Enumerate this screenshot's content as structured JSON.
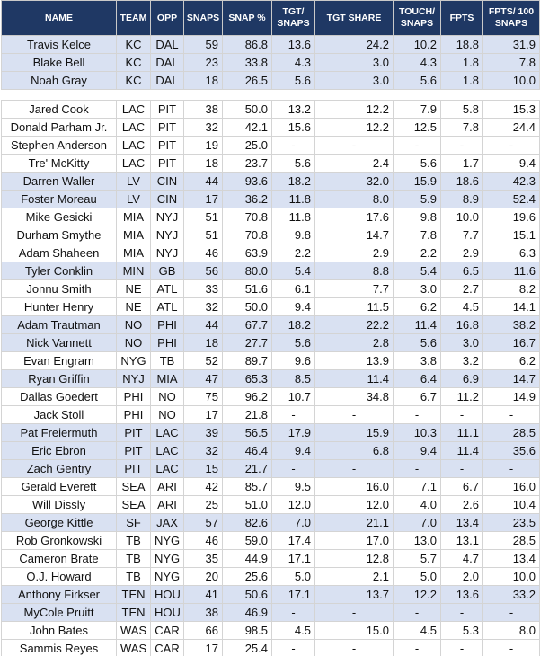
{
  "table": {
    "header": [
      "NAME",
      "TEAM",
      "OPP",
      "SNAPS",
      "SNAP %",
      "TGT/\nSNAPS",
      "TGT SHARE",
      "TOUCH/\nSNAPS",
      "FPTS",
      "FPTS/ 100\nSNAPS"
    ],
    "rows": [
      [
        "Travis Kelce",
        "KC",
        "DAL",
        "59",
        "86.8",
        "13.6",
        "24.2",
        "10.2",
        "18.8",
        "31.9"
      ],
      [
        "Blake Bell",
        "KC",
        "DAL",
        "23",
        "33.8",
        "4.3",
        "3.0",
        "4.3",
        "1.8",
        "7.8"
      ],
      [
        "Noah Gray",
        "KC",
        "DAL",
        "18",
        "26.5",
        "5.6",
        "3.0",
        "5.6",
        "1.8",
        "10.0"
      ],
      [
        "Jared Cook",
        "LAC",
        "PIT",
        "38",
        "50.0",
        "13.2",
        "12.2",
        "7.9",
        "5.8",
        "15.3"
      ],
      [
        "Donald Parham Jr.",
        "LAC",
        "PIT",
        "32",
        "42.1",
        "15.6",
        "12.2",
        "12.5",
        "7.8",
        "24.4"
      ],
      [
        "Stephen Anderson",
        "LAC",
        "PIT",
        "19",
        "25.0",
        "-",
        "-",
        "-",
        "-",
        "-"
      ],
      [
        "Tre' McKitty",
        "LAC",
        "PIT",
        "18",
        "23.7",
        "5.6",
        "2.4",
        "5.6",
        "1.7",
        "9.4"
      ],
      [
        "Darren Waller",
        "LV",
        "CIN",
        "44",
        "93.6",
        "18.2",
        "32.0",
        "15.9",
        "18.6",
        "42.3"
      ],
      [
        "Foster Moreau",
        "LV",
        "CIN",
        "17",
        "36.2",
        "11.8",
        "8.0",
        "5.9",
        "8.9",
        "52.4"
      ],
      [
        "Mike Gesicki",
        "MIA",
        "NYJ",
        "51",
        "70.8",
        "11.8",
        "17.6",
        "9.8",
        "10.0",
        "19.6"
      ],
      [
        "Durham Smythe",
        "MIA",
        "NYJ",
        "51",
        "70.8",
        "9.8",
        "14.7",
        "7.8",
        "7.7",
        "15.1"
      ],
      [
        "Adam Shaheen",
        "MIA",
        "NYJ",
        "46",
        "63.9",
        "2.2",
        "2.9",
        "2.2",
        "2.9",
        "6.3"
      ],
      [
        "Tyler Conklin",
        "MIN",
        "GB",
        "56",
        "80.0",
        "5.4",
        "8.8",
        "5.4",
        "6.5",
        "11.6"
      ],
      [
        "Jonnu Smith",
        "NE",
        "ATL",
        "33",
        "51.6",
        "6.1",
        "7.7",
        "3.0",
        "2.7",
        "8.2"
      ],
      [
        "Hunter Henry",
        "NE",
        "ATL",
        "32",
        "50.0",
        "9.4",
        "11.5",
        "6.2",
        "4.5",
        "14.1"
      ],
      [
        "Adam Trautman",
        "NO",
        "PHI",
        "44",
        "67.7",
        "18.2",
        "22.2",
        "11.4",
        "16.8",
        "38.2"
      ],
      [
        "Nick Vannett",
        "NO",
        "PHI",
        "18",
        "27.7",
        "5.6",
        "2.8",
        "5.6",
        "3.0",
        "16.7"
      ],
      [
        "Evan Engram",
        "NYG",
        "TB",
        "52",
        "89.7",
        "9.6",
        "13.9",
        "3.8",
        "3.2",
        "6.2"
      ],
      [
        "Ryan Griffin",
        "NYJ",
        "MIA",
        "47",
        "65.3",
        "8.5",
        "11.4",
        "6.4",
        "6.9",
        "14.7"
      ],
      [
        "Dallas Goedert",
        "PHI",
        "NO",
        "75",
        "96.2",
        "10.7",
        "34.8",
        "6.7",
        "11.2",
        "14.9"
      ],
      [
        "Jack Stoll",
        "PHI",
        "NO",
        "17",
        "21.8",
        "-",
        "-",
        "-",
        "-",
        "-"
      ],
      [
        "Pat Freiermuth",
        "PIT",
        "LAC",
        "39",
        "56.5",
        "17.9",
        "15.9",
        "10.3",
        "11.1",
        "28.5"
      ],
      [
        "Eric Ebron",
        "PIT",
        "LAC",
        "32",
        "46.4",
        "9.4",
        "6.8",
        "9.4",
        "11.4",
        "35.6"
      ],
      [
        "Zach Gentry",
        "PIT",
        "LAC",
        "15",
        "21.7",
        "-",
        "-",
        "-",
        "-",
        "-"
      ],
      [
        "Gerald Everett",
        "SEA",
        "ARI",
        "42",
        "85.7",
        "9.5",
        "16.0",
        "7.1",
        "6.7",
        "16.0"
      ],
      [
        "Will Dissly",
        "SEA",
        "ARI",
        "25",
        "51.0",
        "12.0",
        "12.0",
        "4.0",
        "2.6",
        "10.4"
      ],
      [
        "George Kittle",
        "SF",
        "JAX",
        "57",
        "82.6",
        "7.0",
        "21.1",
        "7.0",
        "13.4",
        "23.5"
      ],
      [
        "Rob Gronkowski",
        "TB",
        "NYG",
        "46",
        "59.0",
        "17.4",
        "17.0",
        "13.0",
        "13.1",
        "28.5"
      ],
      [
        "Cameron Brate",
        "TB",
        "NYG",
        "35",
        "44.9",
        "17.1",
        "12.8",
        "5.7",
        "4.7",
        "13.4"
      ],
      [
        "O.J. Howard",
        "TB",
        "NYG",
        "20",
        "25.6",
        "5.0",
        "2.1",
        "5.0",
        "2.0",
        "10.0"
      ],
      [
        "Anthony Firkser",
        "TEN",
        "HOU",
        "41",
        "50.6",
        "17.1",
        "13.7",
        "12.2",
        "13.6",
        "33.2"
      ],
      [
        "MyCole Pruitt",
        "TEN",
        "HOU",
        "38",
        "46.9",
        "-",
        "-",
        "-",
        "-",
        "-"
      ],
      [
        "John Bates",
        "WAS",
        "CAR",
        "66",
        "98.5",
        "4.5",
        "15.0",
        "4.5",
        "5.3",
        "8.0"
      ],
      [
        "Sammis Reyes",
        "WAS",
        "CAR",
        "17",
        "25.4",
        "-",
        "-",
        "-",
        "-",
        "-"
      ]
    ]
  }
}
